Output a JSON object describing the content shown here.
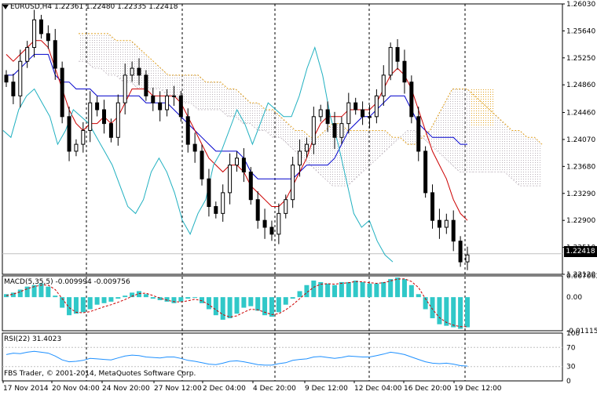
{
  "header": {
    "symbol_line": "EURUSD,H4  1.22361 1.22480 1.22335 1.22418",
    "macd_line": "MACD(5,35,5) -0.009994 -0.009756",
    "rsi_line": "RSI(22) 31.4023",
    "copyright": "FBS Trader, © 2001-2014, MetaQuotes Software Corp."
  },
  "current_price_label": "1.22418",
  "colors": {
    "candle": "#000000",
    "tenkan": "#cc0000",
    "kijun": "#0000cc",
    "chikou": "#20b0c0",
    "cloud": "#c8c0c8",
    "cloud_future": "#e0a020",
    "macd_hist": "#30c8c8",
    "macd_signal": "#cc0000",
    "rsi": "#1e90ff"
  },
  "chart_data": [
    {
      "type": "line",
      "subtype": "candlestick",
      "symbol": "EURUSD",
      "timeframe": "H4",
      "last_bar": {
        "open": 1.22361,
        "high": 1.2248,
        "low": 1.22335,
        "close": 1.22418
      },
      "ylim": [
        1.2212,
        1.2603
      ],
      "y_ticks": [
        "1.26030",
        "1.25640",
        "1.25250",
        "1.24860",
        "1.24460",
        "1.24070",
        "1.23680",
        "1.23290",
        "1.22900",
        "1.22510",
        "1.22120"
      ],
      "x_ticks": [
        "17 Nov 2014",
        "20 Nov 04:00",
        "24 Nov 20:00",
        "27 Nov 12:00",
        "2 Dec 04:00",
        "4 Dec 20:00",
        "9 Dec 12:00",
        "12 Dec 04:00",
        "16 Dec 20:00",
        "19 Dec 12:00"
      ],
      "close_path": [
        1.249,
        1.247,
        1.252,
        1.254,
        1.258,
        1.256,
        1.255,
        1.251,
        1.244,
        1.239,
        1.24,
        1.242,
        1.246,
        1.245,
        1.243,
        1.241,
        1.246,
        1.25,
        1.251,
        1.25,
        1.247,
        1.246,
        1.245,
        1.247,
        1.247,
        1.244,
        1.24,
        1.239,
        1.235,
        1.231,
        1.23,
        1.233,
        1.237,
        1.238,
        1.236,
        1.232,
        1.229,
        1.228,
        1.227,
        1.23,
        1.232,
        1.237,
        1.239,
        1.24,
        1.244,
        1.245,
        1.243,
        1.241,
        1.243,
        1.246,
        1.245,
        1.244,
        1.244,
        1.247,
        1.25,
        1.254,
        1.252,
        1.249,
        1.244,
        1.239,
        1.233,
        1.229,
        1.228,
        1.229,
        1.226,
        1.223,
        1.224
      ],
      "tenkan_path": [
        1.253,
        1.252,
        1.253,
        1.254,
        1.255,
        1.255,
        1.254,
        1.251,
        1.248,
        1.245,
        1.243,
        1.242,
        1.243,
        1.243,
        1.244,
        1.243,
        1.244,
        1.246,
        1.248,
        1.248,
        1.248,
        1.247,
        1.247,
        1.247,
        1.247,
        1.246,
        1.244,
        1.242,
        1.24,
        1.238,
        1.237,
        1.236,
        1.237,
        1.237,
        1.236,
        1.234,
        1.233,
        1.232,
        1.231,
        1.231,
        1.232,
        1.234,
        1.236,
        1.238,
        1.241,
        1.243,
        1.244,
        1.244,
        1.244,
        1.245,
        1.245,
        1.245,
        1.245,
        1.246,
        1.248,
        1.25,
        1.251,
        1.25,
        1.248,
        1.245,
        1.242,
        1.239,
        1.237,
        1.235,
        1.232,
        1.23,
        1.229
      ],
      "kijun_path": [
        1.25,
        1.25,
        1.251,
        1.252,
        1.253,
        1.253,
        1.253,
        1.25,
        1.249,
        1.249,
        1.248,
        1.248,
        1.248,
        1.247,
        1.247,
        1.247,
        1.247,
        1.247,
        1.247,
        1.247,
        1.246,
        1.246,
        1.246,
        1.246,
        1.245,
        1.244,
        1.243,
        1.242,
        1.241,
        1.24,
        1.239,
        1.239,
        1.239,
        1.239,
        1.238,
        1.236,
        1.235,
        1.235,
        1.235,
        1.235,
        1.235,
        1.235,
        1.236,
        1.237,
        1.237,
        1.237,
        1.237,
        1.238,
        1.24,
        1.242,
        1.243,
        1.244,
        1.244,
        1.245,
        1.246,
        1.247,
        1.247,
        1.247,
        1.245,
        1.243,
        1.242,
        1.241,
        1.241,
        1.241,
        1.241,
        1.24,
        1.24
      ],
      "chikou_path": [
        1.242,
        1.241,
        1.245,
        1.247,
        1.248,
        1.246,
        1.244,
        1.24,
        1.242,
        1.245,
        1.244,
        1.243,
        1.241,
        1.239,
        1.237,
        1.234,
        1.231,
        1.23,
        1.232,
        1.236,
        1.238,
        1.236,
        1.233,
        1.229,
        1.227,
        1.23,
        1.232,
        1.237,
        1.239,
        1.242,
        1.245,
        1.243,
        1.24,
        1.243,
        1.246,
        1.245,
        1.244,
        1.244,
        1.247,
        1.251,
        1.254,
        1.25,
        1.244,
        1.24,
        1.235,
        1.23,
        1.228,
        1.229,
        1.226,
        1.224,
        1.223
      ],
      "cloud_top": [
        1.256,
        1.256,
        1.256,
        1.256,
        1.256,
        1.255,
        1.255,
        1.255,
        1.254,
        1.253,
        1.252,
        1.251,
        1.25,
        1.25,
        1.25,
        1.25,
        1.25,
        1.249,
        1.249,
        1.249,
        1.248,
        1.248,
        1.247,
        1.246,
        1.246,
        1.245,
        1.245,
        1.244,
        1.243,
        1.242,
        1.242,
        1.241,
        1.241,
        1.242,
        1.243,
        1.243,
        1.242,
        1.242,
        1.242,
        1.242,
        1.242,
        1.242,
        1.241,
        1.241,
        1.24,
        1.24,
        1.241,
        1.242,
        1.244,
        1.246,
        1.248,
        1.248,
        1.248,
        1.247,
        1.246,
        1.245,
        1.244,
        1.243,
        1.242,
        1.242,
        1.241,
        1.241,
        1.24
      ],
      "cloud_bottom": [
        1.252,
        1.252,
        1.251,
        1.251,
        1.25,
        1.25,
        1.249,
        1.249,
        1.248,
        1.248,
        1.248,
        1.248,
        1.247,
        1.247,
        1.246,
        1.246,
        1.245,
        1.245,
        1.245,
        1.245,
        1.244,
        1.244,
        1.243,
        1.243,
        1.242,
        1.242,
        1.241,
        1.241,
        1.24,
        1.239,
        1.238,
        1.237,
        1.236,
        1.235,
        1.234,
        1.234,
        1.234,
        1.235,
        1.236,
        1.237,
        1.238,
        1.239,
        1.24,
        1.241,
        1.242,
        1.242,
        1.241,
        1.24,
        1.239,
        1.238,
        1.237,
        1.236,
        1.236,
        1.236,
        1.236,
        1.236,
        1.236,
        1.236,
        1.235,
        1.234,
        1.234,
        1.234,
        1.234
      ]
    },
    {
      "type": "bar",
      "name": "MACD(5,35,5)",
      "main": -0.009994,
      "signal": -0.009756,
      "ylim": [
        -0.011151,
        0.007063
      ],
      "y_ticks": [
        "0.007063",
        "0.00",
        "-0.011151"
      ],
      "hist": [
        0.001,
        0.0015,
        0.0025,
        0.0035,
        0.004,
        0.0045,
        0.0035,
        0.0005,
        -0.0035,
        -0.006,
        -0.0055,
        -0.005,
        -0.004,
        -0.0025,
        -0.002,
        -0.0015,
        -0.0005,
        0.0005,
        0.0015,
        0.002,
        0.001,
        -0.0005,
        -0.001,
        -0.0015,
        -0.002,
        -0.0015,
        -0.0005,
        0.0,
        -0.002,
        -0.004,
        -0.006,
        -0.0075,
        -0.007,
        -0.0055,
        -0.0035,
        -0.003,
        -0.0045,
        -0.006,
        -0.0065,
        -0.005,
        -0.0025,
        -0.0005,
        0.002,
        0.004,
        0.0055,
        0.005,
        0.0045,
        0.004,
        0.005,
        0.005,
        0.0055,
        0.005,
        0.0045,
        0.0045,
        0.005,
        0.006,
        0.0065,
        0.006,
        0.004,
        0.001,
        -0.004,
        -0.007,
        -0.009,
        -0.0095,
        -0.01,
        -0.0105,
        -0.01
      ],
      "signal_path": [
        0.0005,
        0.001,
        0.0018,
        0.0028,
        0.0035,
        0.004,
        0.004,
        0.0025,
        -0.0005,
        -0.0035,
        -0.005,
        -0.0052,
        -0.0048,
        -0.004,
        -0.0032,
        -0.0025,
        -0.0017,
        -0.0008,
        0.0003,
        0.0012,
        0.0013,
        0.0005,
        -0.0003,
        -0.001,
        -0.0015,
        -0.0016,
        -0.0012,
        -0.0007,
        -0.0012,
        -0.0025,
        -0.0042,
        -0.0058,
        -0.0066,
        -0.0062,
        -0.005,
        -0.004,
        -0.0042,
        -0.005,
        -0.0058,
        -0.0055,
        -0.0042,
        -0.0025,
        -0.0005,
        0.0015,
        0.0033,
        0.0043,
        0.0045,
        0.0043,
        0.0046,
        0.0048,
        0.0052,
        0.0051,
        0.0048,
        0.0046,
        0.0048,
        0.0054,
        0.006,
        0.0061,
        0.0052,
        0.0032,
        -0.0005,
        -0.004,
        -0.0068,
        -0.0084,
        -0.0093,
        -0.0098,
        -0.0098
      ]
    },
    {
      "type": "line",
      "name": "RSI(22)",
      "last": 31.4023,
      "ylim": [
        0,
        100
      ],
      "y_ticks": [
        "100",
        "70",
        "30",
        "0"
      ],
      "values": [
        55,
        58,
        57,
        60,
        62,
        60,
        58,
        52,
        44,
        40,
        41,
        43,
        47,
        46,
        45,
        44,
        48,
        52,
        54,
        53,
        50,
        49,
        48,
        50,
        50,
        47,
        43,
        41,
        38,
        35,
        34,
        37,
        41,
        42,
        40,
        37,
        34,
        33,
        33,
        36,
        38,
        43,
        45,
        46,
        50,
        51,
        49,
        47,
        49,
        52,
        51,
        50,
        50,
        53,
        56,
        60,
        58,
        55,
        50,
        45,
        40,
        37,
        36,
        37,
        35,
        32,
        31
      ]
    }
  ]
}
